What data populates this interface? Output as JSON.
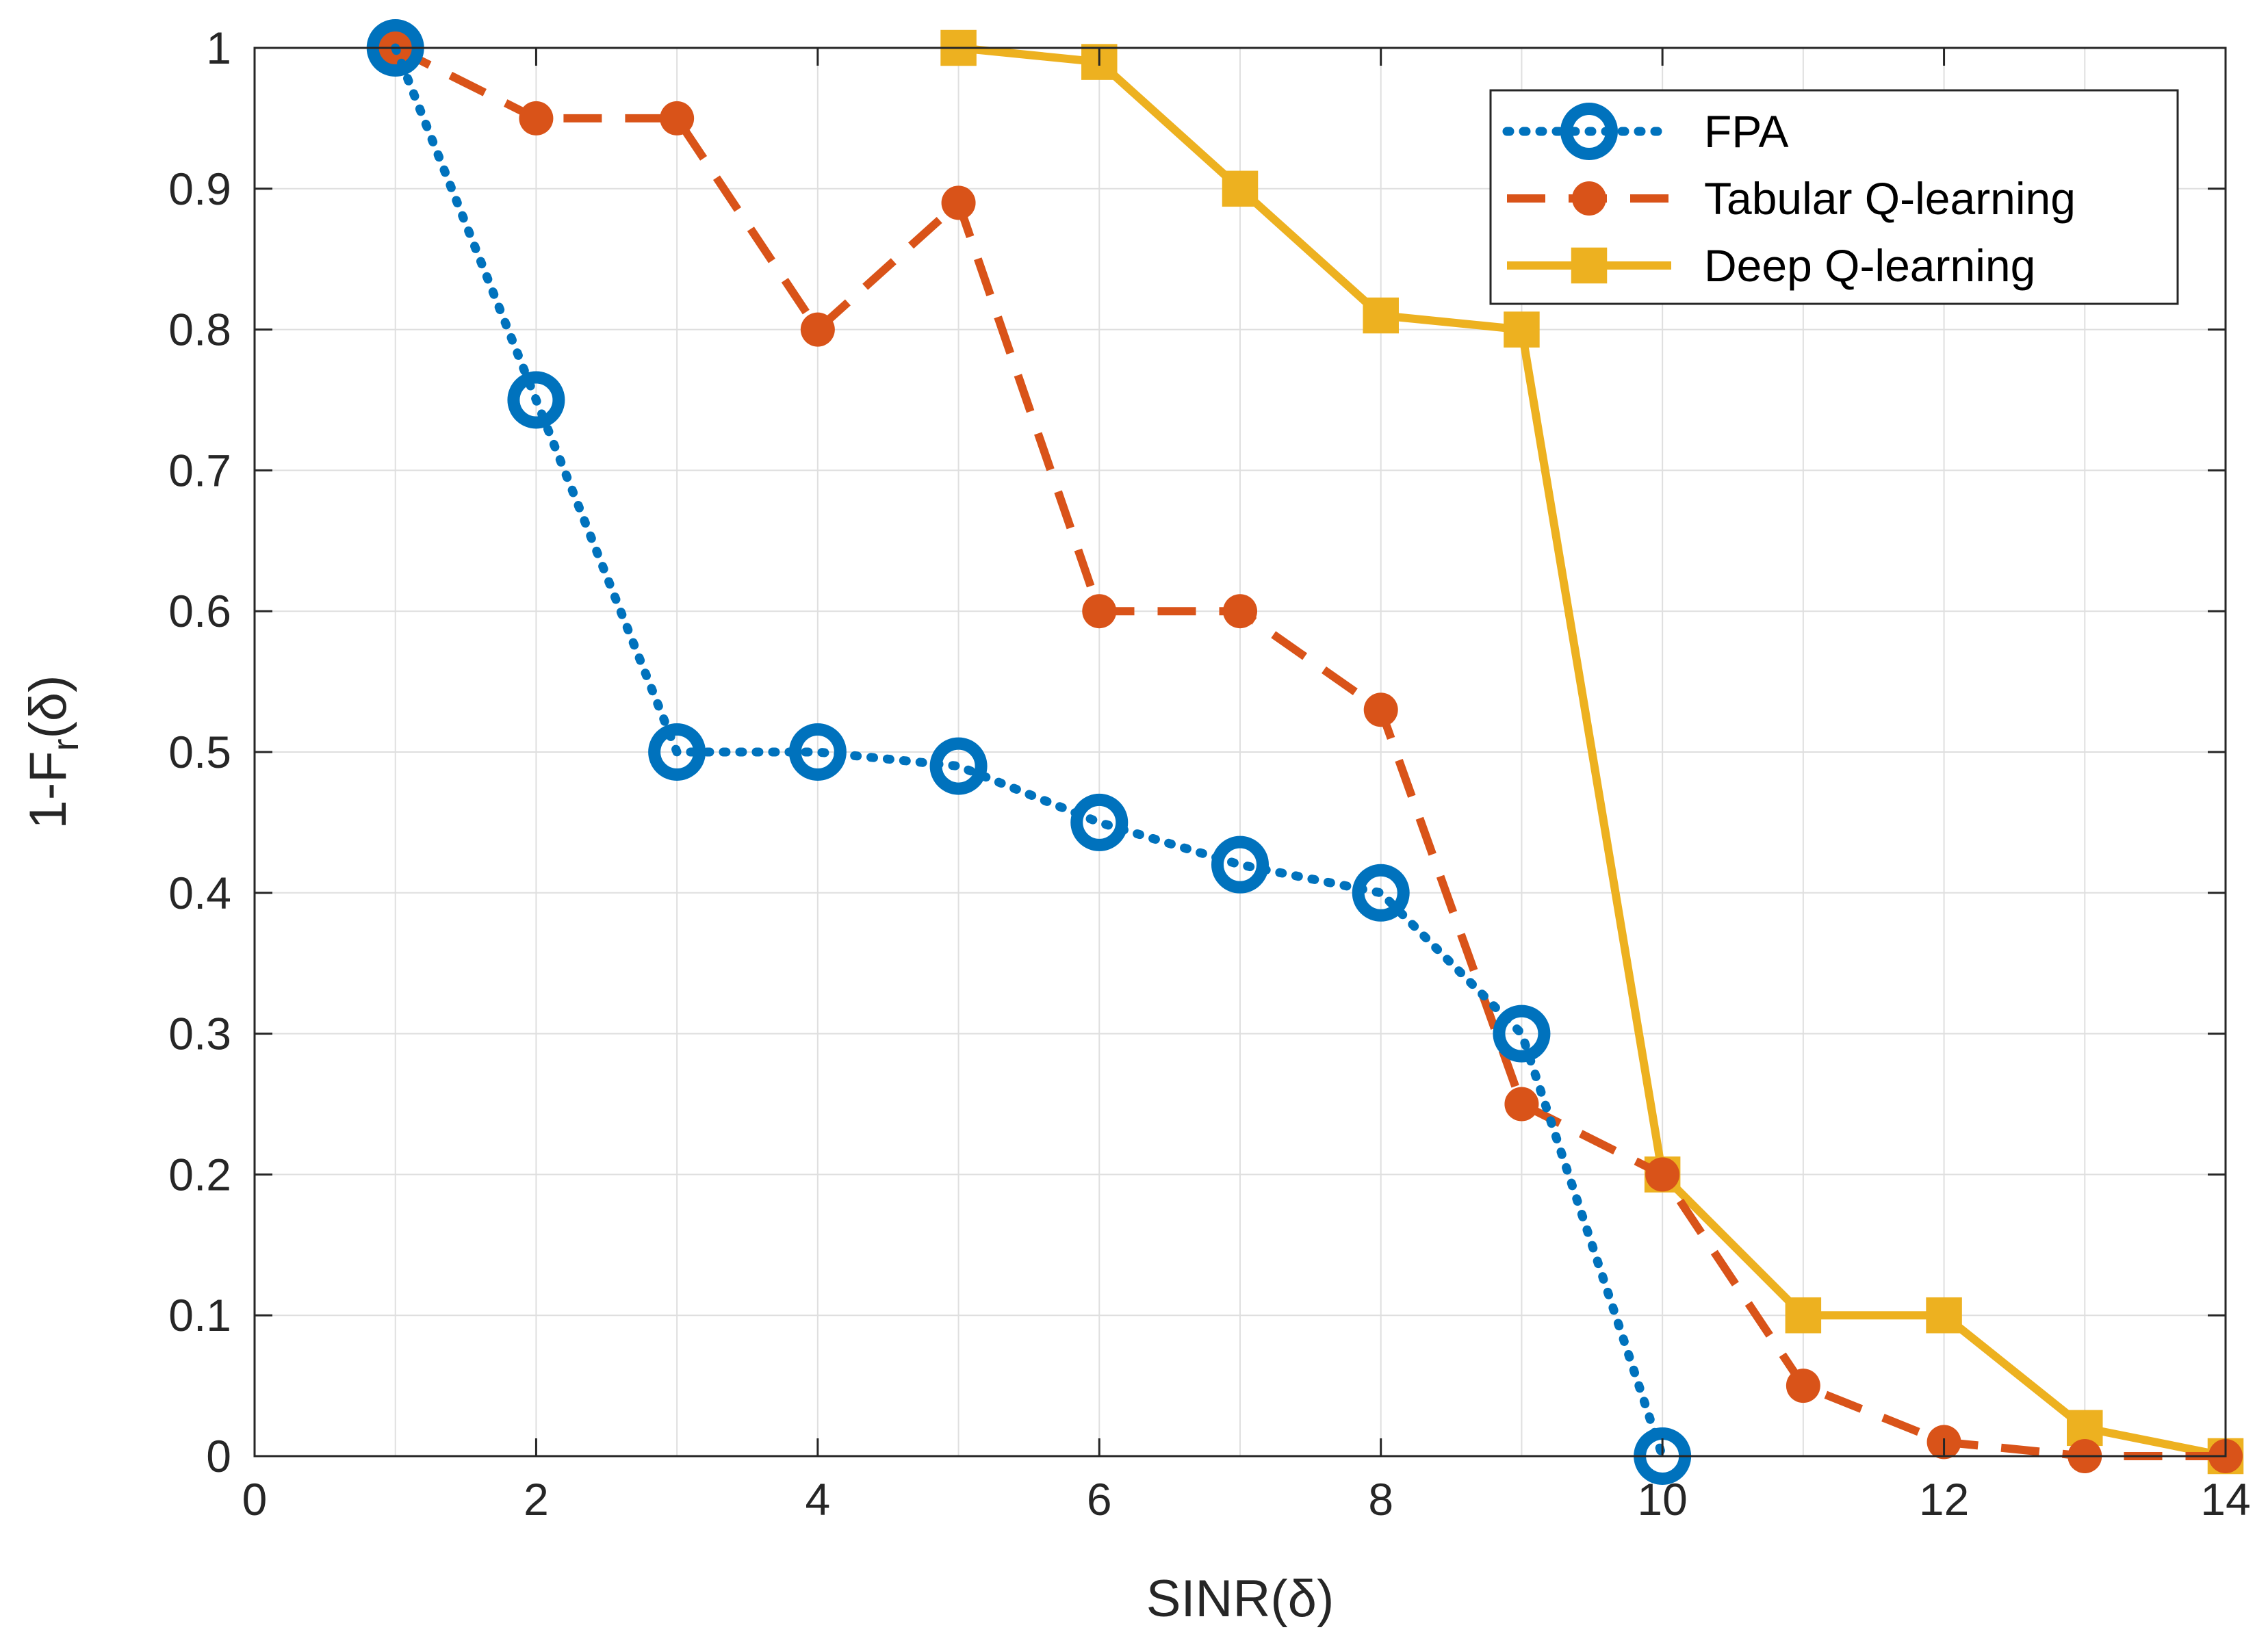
{
  "chart_data": {
    "type": "line",
    "title": "",
    "xlabel": "SINR(δ)",
    "ylabel": "1-F_r(δ)",
    "ylabel_parts": {
      "main": "1-F",
      "sub": "r",
      "suffix": "(δ)"
    },
    "xlim": [
      0,
      14
    ],
    "ylim": [
      0,
      1
    ],
    "xticks": [
      0,
      2,
      4,
      6,
      8,
      10,
      12,
      14
    ],
    "yticks": [
      0,
      0.1,
      0.2,
      0.3,
      0.4,
      0.5,
      0.6,
      0.7,
      0.8,
      0.9,
      1
    ],
    "xtick_labels": [
      "0",
      "2",
      "4",
      "6",
      "8",
      "10",
      "12",
      "14"
    ],
    "ytick_labels": [
      "0",
      "0.1",
      "0.2",
      "0.3",
      "0.4",
      "0.5",
      "0.6",
      "0.7",
      "0.8",
      "0.9",
      "1"
    ],
    "grid": true,
    "grid_x": [
      0,
      1,
      2,
      3,
      4,
      5,
      6,
      7,
      8,
      9,
      10,
      11,
      12,
      13,
      14
    ],
    "legend_position": "top-right",
    "series": [
      {
        "name": "FPA",
        "color": "#0072BD",
        "line_style": "dotted",
        "marker": "circle-open",
        "x": [
          1,
          2,
          3,
          4,
          5,
          6,
          7,
          8,
          9,
          10
        ],
        "y": [
          1.0,
          0.75,
          0.5,
          0.5,
          0.49,
          0.45,
          0.42,
          0.4,
          0.3,
          0.0
        ]
      },
      {
        "name": "Tabular Q-learning",
        "color": "#D95319",
        "line_style": "dashed",
        "marker": "circle-filled",
        "x": [
          1,
          2,
          3,
          4,
          5,
          6,
          7,
          8,
          9,
          10,
          11,
          12,
          13,
          14
        ],
        "y": [
          1.0,
          0.95,
          0.95,
          0.8,
          0.89,
          0.6,
          0.6,
          0.53,
          0.25,
          0.2,
          0.05,
          0.01,
          0.0,
          0.0
        ]
      },
      {
        "name": "Deep Q-learning",
        "color": "#EDB120",
        "line_style": "solid",
        "marker": "square-filled",
        "x": [
          5,
          6,
          7,
          8,
          9,
          10,
          11,
          12,
          13,
          14
        ],
        "y": [
          1.0,
          0.99,
          0.9,
          0.81,
          0.8,
          0.2,
          0.1,
          0.1,
          0.02,
          0.0
        ]
      }
    ]
  }
}
